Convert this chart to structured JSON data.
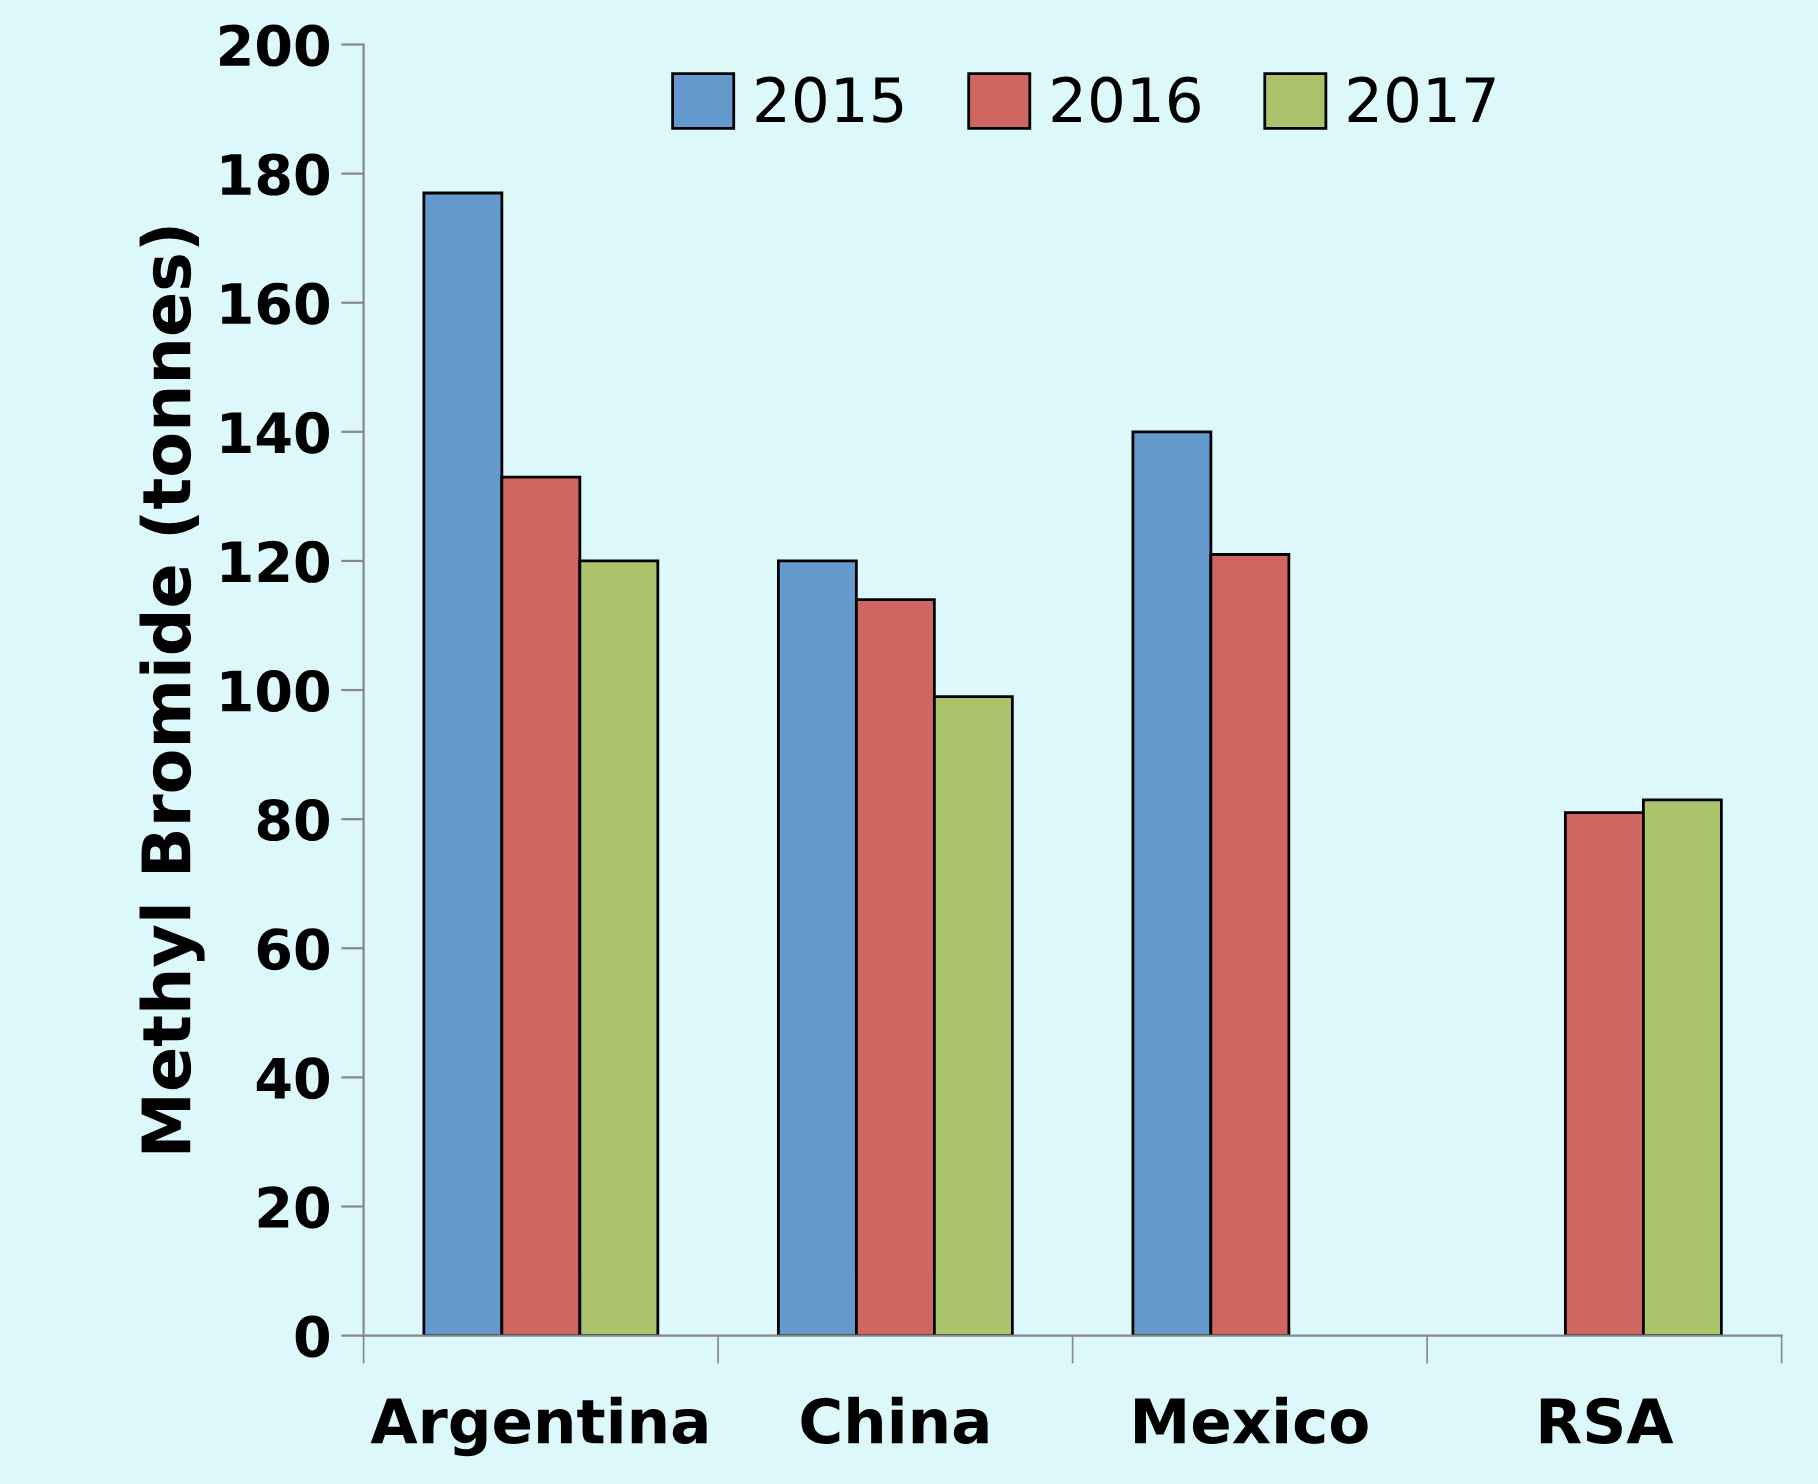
{
  "chart_data": {
    "type": "bar",
    "ylabel": "Methyl Bromide (tonnes)",
    "categories": [
      "Argentina",
      "China",
      "Mexico",
      "RSA"
    ],
    "series": [
      {
        "name": "2015",
        "color": "#6399cc",
        "values": [
          177,
          120,
          140,
          null
        ]
      },
      {
        "name": "2016",
        "color": "#cf6661",
        "values": [
          133,
          114,
          121,
          81
        ]
      },
      {
        "name": "2017",
        "color": "#abc46c",
        "values": [
          120,
          99,
          null,
          83
        ]
      }
    ],
    "ylim": [
      0,
      200
    ],
    "yticks": [
      0,
      20,
      40,
      60,
      80,
      100,
      120,
      140,
      160,
      180,
      200
    ],
    "legend": "top right",
    "grid": false
  }
}
